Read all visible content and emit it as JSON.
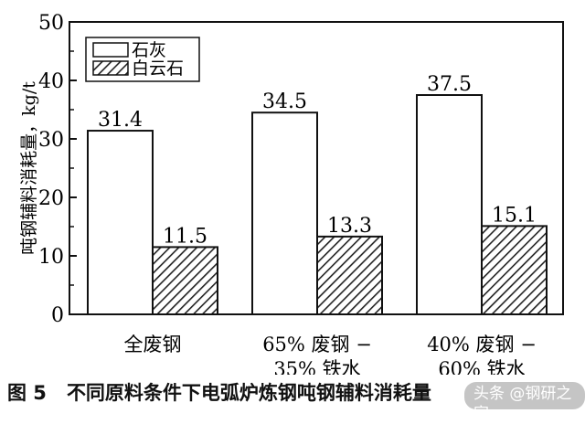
{
  "chart_data": {
    "type": "bar",
    "categories": [
      "全废钢",
      "65% 废钢 −\n35% 铁水",
      "40% 废钢 −\n60% 铁水"
    ],
    "series": [
      {
        "name": "石灰",
        "values": [
          31.4,
          34.5,
          37.5
        ],
        "fill": "plain"
      },
      {
        "name": "白云石",
        "values": [
          11.5,
          13.3,
          15.1
        ],
        "fill": "hatched"
      }
    ],
    "data_labels": [
      [
        "31.4",
        "34.5",
        "37.5"
      ],
      [
        "11.5",
        "13.3",
        "15.1"
      ]
    ],
    "ylabel": "吨钢辅料消耗量，kg/t",
    "ylim": [
      0,
      50
    ],
    "yticks": [
      0,
      10,
      20,
      30,
      40,
      50
    ],
    "grid": false,
    "legend": "top-left"
  },
  "caption": {
    "number": "图 5",
    "text": "不同原料条件下电弧炉炼钢吨钢辅料消耗量"
  },
  "watermark": "头条 @钢研之家"
}
